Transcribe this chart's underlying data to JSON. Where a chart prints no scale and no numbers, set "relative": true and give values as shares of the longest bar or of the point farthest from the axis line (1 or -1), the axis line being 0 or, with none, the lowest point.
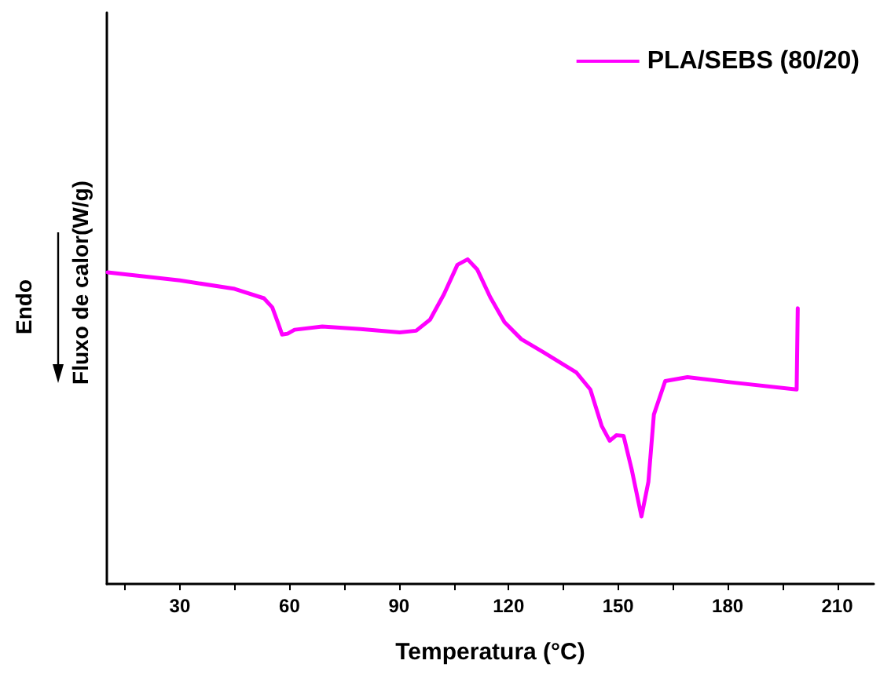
{
  "chart_data": {
    "type": "line",
    "relative": true,
    "xlabel": "Temperatura (°C)",
    "ylabel": "Fluxo de calor(W/g)",
    "annotations": [
      "Endo"
    ],
    "xlim": [
      10,
      220
    ],
    "xticks": [
      {
        "value": 15,
        "label": null
      },
      30,
      {
        "value": 45,
        "label": null
      },
      60,
      {
        "value": 75,
        "label": null
      },
      90,
      {
        "value": 105,
        "label": null
      },
      120,
      {
        "value": 135,
        "label": null
      },
      150,
      {
        "value": 165,
        "label": null
      },
      180,
      {
        "value": 195,
        "label": null
      },
      210
    ],
    "grid": false,
    "legend": "top right",
    "marker": "none",
    "line_style": "solid",
    "series": [
      {
        "name": "PLA/SEBS (80/20)",
        "color": "#ff00ff",
        "x": [
          10.2,
          30,
          45,
          53,
          55.3,
          56.8,
          58,
          59.5,
          61.4,
          69,
          79.5,
          90.2,
          94.7,
          98.5,
          102.3,
          106,
          108.8,
          111.4,
          115,
          118.9,
          123.5,
          129.5,
          138.6,
          142.4,
          145.5,
          147.7,
          149.5,
          151.5,
          153.8,
          156.4,
          158.3,
          159.8,
          162.9,
          169,
          181,
          198.9,
          199.2
        ],
        "values": [
          0.96,
          0.935,
          0.909,
          0.88,
          0.852,
          0.806,
          0.768,
          0.771,
          0.783,
          0.793,
          0.785,
          0.775,
          0.78,
          0.814,
          0.892,
          0.983,
          1.0,
          0.969,
          0.883,
          0.806,
          0.754,
          0.714,
          0.651,
          0.599,
          0.487,
          0.441,
          0.458,
          0.456,
          0.349,
          0.208,
          0.315,
          0.522,
          0.625,
          0.637,
          0.621,
          0.599,
          0.849
        ]
      }
    ]
  }
}
